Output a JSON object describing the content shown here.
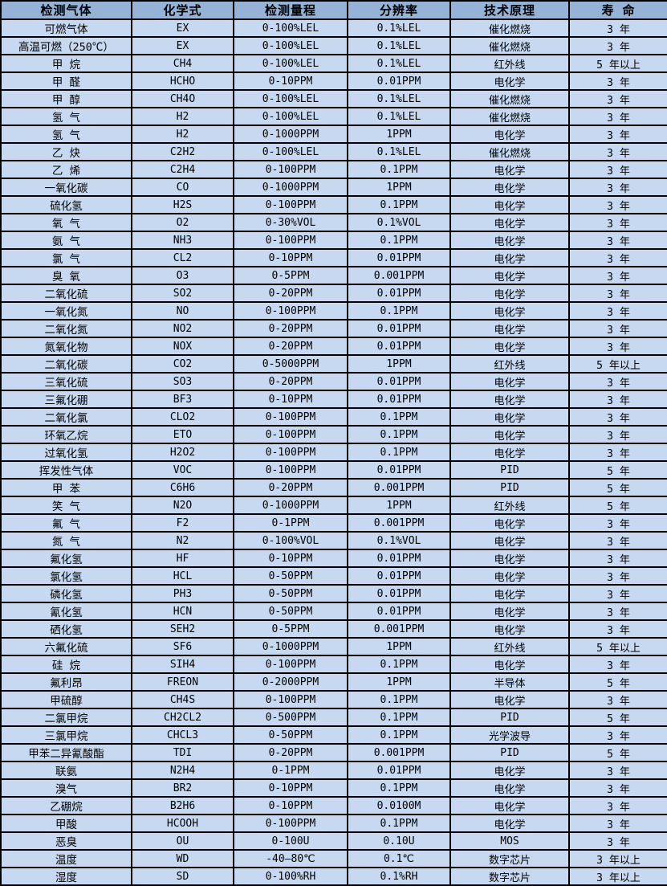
{
  "table": {
    "columns": [
      "检测气体",
      "化学式",
      "检测量程",
      "分辨率",
      "技术原理",
      "寿 命"
    ],
    "column_names": [
      "cell-gas-name",
      "cell-chemical-formula",
      "cell-detection-range",
      "cell-resolution",
      "cell-technology",
      "cell-lifespan"
    ],
    "colors": {
      "header_bg": "#95B3D7",
      "row_bg": "#C6D9F1",
      "border": "#000000",
      "text": "#000000"
    },
    "rows": [
      [
        "可燃气体",
        "EX",
        "0-100%LEL",
        "0.1%LEL",
        "催化燃烧",
        "3 年"
      ],
      [
        "高温可燃（250℃）",
        "EX",
        "0-100%LEL",
        "0.1%LEL",
        "催化燃烧",
        "3 年"
      ],
      [
        "甲 烷",
        "CH4",
        "0-100%LEL",
        "0.1%LEL",
        "红外线",
        "5 年以上"
      ],
      [
        "甲 醛",
        "HCHO",
        "0-10PPM",
        "0.01PPM",
        "电化学",
        "3 年"
      ],
      [
        "甲 醇",
        "CH4O",
        "0-100%LEL",
        "0.1%LEL",
        "催化燃烧",
        "3 年"
      ],
      [
        "氢 气",
        "H2",
        "0-100%LEL",
        "0.1%LEL",
        "催化燃烧",
        "3 年"
      ],
      [
        "氢 气",
        "H2",
        "0-1000PPM",
        "1PPM",
        "电化学",
        "3 年"
      ],
      [
        "乙 炔",
        "C2H2",
        "0-100%LEL",
        "0.1%LEL",
        "催化燃烧",
        "3 年"
      ],
      [
        "乙 烯",
        "C2H4",
        "0-100PPM",
        "0.1PPM",
        "电化学",
        "3 年"
      ],
      [
        "一氧化碳",
        "CO",
        "0-1000PPM",
        "1PPM",
        "电化学",
        "3 年"
      ],
      [
        "硫化氢",
        "H2S",
        "0-100PPM",
        "0.1PPM",
        "电化学",
        "3 年"
      ],
      [
        "氧 气",
        "O2",
        "0-30%VOL",
        "0.1%VOL",
        "电化学",
        "3 年"
      ],
      [
        "氨 气",
        "NH3",
        "0-100PPM",
        "0.1PPM",
        "电化学",
        "3 年"
      ],
      [
        "氯 气",
        "CL2",
        "0-10PPM",
        "0.01PPM",
        "电化学",
        "3 年"
      ],
      [
        "臭 氧",
        "O3",
        "0-5PPM",
        "0.001PPM",
        "电化学",
        "3 年"
      ],
      [
        "二氧化硫",
        "SO2",
        "0-20PPM",
        "0.01PPM",
        "电化学",
        "3 年"
      ],
      [
        "一氧化氮",
        "NO",
        "0-100PPM",
        "0.1PPM",
        "电化学",
        "3 年"
      ],
      [
        "二氧化氮",
        "NO2",
        "0-20PPM",
        "0.01PPM",
        "电化学",
        "3 年"
      ],
      [
        "氮氧化物",
        "NOX",
        "0-20PPM",
        "0.01PPM",
        "电化学",
        "3 年"
      ],
      [
        "二氧化碳",
        "CO2",
        "0-5000PPM",
        "1PPM",
        "红外线",
        "5 年以上"
      ],
      [
        "三氧化硫",
        "SO3",
        "0-20PPM",
        "0.01PPM",
        "电化学",
        "3 年"
      ],
      [
        "三氟化硼",
        "BF3",
        "0-10PPM",
        "0.01PPM",
        "电化学",
        "3 年"
      ],
      [
        "二氧化氯",
        "CLO2",
        "0-100PPM",
        "0.1PPM",
        "电化学",
        "3 年"
      ],
      [
        "环氧乙烷",
        "ETO",
        "0-100PPM",
        "0.1PPM",
        "电化学",
        "3 年"
      ],
      [
        "过氧化氢",
        "H2O2",
        "0-100PPM",
        "0.1PPM",
        "电化学",
        "3 年"
      ],
      [
        "挥发性气体",
        "VOC",
        "0-100PPM",
        "0.01PPM",
        "PID",
        "5 年"
      ],
      [
        "甲 苯",
        "C6H6",
        "0-20PPM",
        "0.001PPM",
        "PID",
        "5 年"
      ],
      [
        "笑 气",
        "N2O",
        "0-1000PPM",
        "1PPM",
        "红外线",
        "5 年"
      ],
      [
        "氟 气",
        "F2",
        "0-1PPM",
        "0.001PPM",
        "电化学",
        "3 年"
      ],
      [
        "氮 气",
        "N2",
        "0-100%VOL",
        "0.1%VOL",
        "电化学",
        "3 年"
      ],
      [
        "氟化氢",
        "HF",
        "0-10PPM",
        "0.01PPM",
        "电化学",
        "3 年"
      ],
      [
        "氯化氢",
        "HCL",
        "0-50PPM",
        "0.01PPM",
        "电化学",
        "3 年"
      ],
      [
        "磷化氢",
        "PH3",
        "0-50PPM",
        "0.01PPM",
        "电化学",
        "3 年"
      ],
      [
        "氰化氢",
        "HCN",
        "0-50PPM",
        "0.01PPM",
        "电化学",
        "3 年"
      ],
      [
        "硒化氢",
        "SEH2",
        "0-5PPM",
        "0.001PPM",
        "电化学",
        "3 年"
      ],
      [
        "六氟化硫",
        "SF6",
        "0-1000PPM",
        "1PPM",
        "红外线",
        "5 年以上"
      ],
      [
        "硅 烷",
        "SIH4",
        "0-100PPM",
        "0.1PPM",
        "电化学",
        "3 年"
      ],
      [
        "氟利昂",
        "FREON",
        "0-2000PPM",
        "1PPM",
        "半导体",
        "5 年"
      ],
      [
        "甲硫醇",
        "CH4S",
        "0-100PPM",
        "0.1PPM",
        "电化学",
        "3 年"
      ],
      [
        "二氯甲烷",
        "CH2CL2",
        "0-500PPM",
        "0.1PPM",
        "PID",
        "5 年"
      ],
      [
        "三氯甲烷",
        "CHCL3",
        "0-50PPM",
        "0.1PPM",
        "光学波导",
        "3 年"
      ],
      [
        "甲苯二异氰酸酯",
        "TDI",
        "0-20PPM",
        "0.001PPM",
        "PID",
        "5 年"
      ],
      [
        "联氨",
        "N2H4",
        "0-1PPM",
        "0.01PPM",
        "电化学",
        "3 年"
      ],
      [
        "溴气",
        "BR2",
        "0-10PPM",
        "0.1PPM",
        "电化学",
        "3 年"
      ],
      [
        "乙硼烷",
        "B2H6",
        "0-10PPM",
        "0.0100M",
        "电化学",
        "3 年"
      ],
      [
        "甲酸",
        "HCOOH",
        "0-100PPM",
        "0.1PPM",
        "电化学",
        "3 年"
      ],
      [
        "恶臭",
        "OU",
        "0-100U",
        "0.10U",
        "MOS",
        "3 年"
      ],
      [
        "温度",
        "WD",
        "-40—80℃",
        "0.1℃",
        "数字芯片",
        "3 年以上"
      ],
      [
        "湿度",
        "SD",
        "0-100%RH",
        "0.1%RH",
        "数字芯片",
        "3 年以上"
      ]
    ]
  }
}
